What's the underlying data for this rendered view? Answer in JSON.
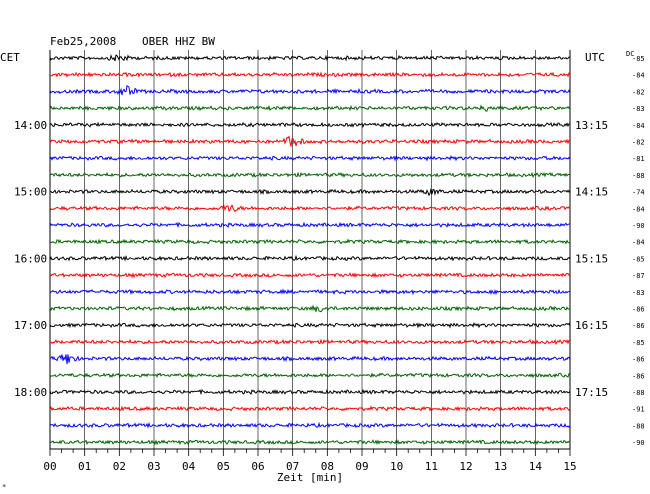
{
  "header": {
    "date": "Feb25,2008",
    "station": "OBER HHZ BW"
  },
  "labels": {
    "left_timezone": "CET",
    "right_timezone": "UTC",
    "dc_header": "DC",
    "x_axis_title": "Zeit [min]",
    "corner_mark": "*"
  },
  "colors": {
    "black": "#000000",
    "red": "#ff0000",
    "blue": "#0000ff",
    "green": "#006400",
    "grid": "#000000"
  },
  "chart_data": {
    "type": "line",
    "title": "Feb25,2008   OBER HHZ BW",
    "xlabel": "Zeit [min]",
    "ylabel": "",
    "xlim": [
      0,
      15
    ],
    "x_ticks": [
      "00",
      "01",
      "02",
      "03",
      "04",
      "05",
      "06",
      "07",
      "08",
      "09",
      "10",
      "11",
      "12",
      "13",
      "14",
      "15"
    ],
    "trace_count": 24,
    "trace_color_cycle": [
      "black",
      "red",
      "blue",
      "green"
    ],
    "left_hour_labels": [
      {
        "trace_index": 4,
        "label": "14:00"
      },
      {
        "trace_index": 8,
        "label": "15:00"
      },
      {
        "trace_index": 12,
        "label": "16:00"
      },
      {
        "trace_index": 16,
        "label": "17:00"
      },
      {
        "trace_index": 20,
        "label": "18:00"
      }
    ],
    "right_utc_labels": [
      {
        "trace_index": 4,
        "label": "13:15"
      },
      {
        "trace_index": 8,
        "label": "14:15"
      },
      {
        "trace_index": 12,
        "label": "15:15"
      },
      {
        "trace_index": 16,
        "label": "16:15"
      },
      {
        "trace_index": 20,
        "label": "17:15"
      }
    ],
    "dc_offsets": [
      "-85",
      "-84",
      "-82",
      "-83",
      "-84",
      "-82",
      "-81",
      "-88",
      "-74",
      "-84",
      "-90",
      "-84",
      "-85",
      "-87",
      "-83",
      "-86",
      "-86",
      "-85",
      "-86",
      "-86",
      "-88",
      "-91",
      "-88",
      "-90"
    ],
    "events": [
      {
        "trace_index": 0,
        "minute": 2.0,
        "amplitude": 0.5
      },
      {
        "trace_index": 2,
        "minute": 2.2,
        "amplitude": 0.8
      },
      {
        "trace_index": 3,
        "minute": 12.7,
        "amplitude": 0.4
      },
      {
        "trace_index": 5,
        "minute": 7.0,
        "amplitude": 0.9
      },
      {
        "trace_index": 8,
        "minute": 11.0,
        "amplitude": 0.4
      },
      {
        "trace_index": 9,
        "minute": 5.2,
        "amplitude": 0.5
      },
      {
        "trace_index": 15,
        "minute": 7.8,
        "amplitude": 0.4
      },
      {
        "trace_index": 18,
        "minute": 0.5,
        "amplitude": 0.9
      }
    ]
  }
}
